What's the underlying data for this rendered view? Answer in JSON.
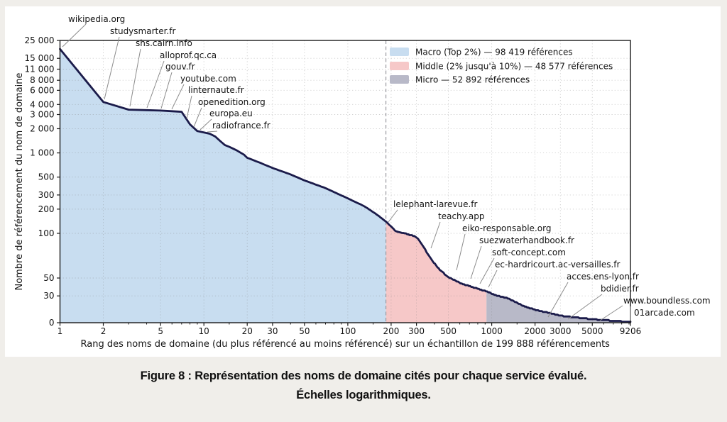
{
  "figure": {
    "caption_line1": "Figure 8 : Représentation des noms de domaine cités pour chaque service évalué.",
    "caption_line2": "Échelles logarithmiques."
  },
  "chart_data": {
    "type": "area",
    "title": "",
    "xlabel": "Rang des noms de domaine (du plus référencé au moins référencé) sur un échantillon de 199 888 référencements",
    "ylabel": "Nombre de référencement du nom de domaine",
    "x_scale": "log",
    "y_scale": "symlog (linear below 100)",
    "x_range": [
      1,
      9206
    ],
    "y_range": [
      0,
      25000
    ],
    "grid": "dotted",
    "legend_position": "top-right",
    "colors": {
      "macro_fill": "#c8ddf0",
      "middle_fill": "#f6c8c8",
      "micro_fill": "#b8b9c8",
      "line": "#1b1b4a",
      "divider": "#9a9aa0",
      "leader": "#8c8c8c",
      "frame": "#1a1a1a",
      "text": "#141414",
      "panel": "#ffffff",
      "page_background": "#f0eeea"
    },
    "legend": [
      {
        "label": "Macro (Top 2%) — 98 419 références",
        "color": "#c8ddf0"
      },
      {
        "label": "Middle (2% jusqu'à 10%) — 48 577 références",
        "color": "#f6c8c8"
      },
      {
        "label": "Micro — 52 892 références",
        "color": "#b8b9c8"
      }
    ],
    "regions": [
      {
        "name": "Macro",
        "from_rank": 1,
        "to_rank": 184,
        "color": "#c8ddf0"
      },
      {
        "name": "Middle",
        "from_rank": 184,
        "to_rank": 920,
        "color": "#f6c8c8"
      },
      {
        "name": "Micro",
        "from_rank": 920,
        "to_rank": 9206,
        "color": "#b8b9c8"
      }
    ],
    "divider_rank": 184,
    "x_ticks": [
      {
        "v": 1,
        "label": "1"
      },
      {
        "v": 2,
        "label": "2"
      },
      {
        "v": 5,
        "label": "5"
      },
      {
        "v": 10,
        "label": "10"
      },
      {
        "v": 20,
        "label": "20"
      },
      {
        "v": 30,
        "label": "30"
      },
      {
        "v": 50,
        "label": "50"
      },
      {
        "v": 100,
        "label": "100"
      },
      {
        "v": 200,
        "label": "200"
      },
      {
        "v": 300,
        "label": "300"
      },
      {
        "v": 500,
        "label": "500"
      },
      {
        "v": 1000,
        "label": "1000"
      },
      {
        "v": 2000,
        "label": "2000"
      },
      {
        "v": 3000,
        "label": "3000"
      },
      {
        "v": 5000,
        "label": "5000"
      },
      {
        "v": 9206,
        "label": "9206"
      }
    ],
    "x_minor_ticks": [
      3,
      4,
      6,
      7,
      8,
      9,
      15,
      40,
      60,
      70,
      80,
      90,
      150,
      400,
      600,
      700,
      800,
      900,
      1500,
      4000,
      6000,
      7000,
      8000,
      9000
    ],
    "y_ticks": [
      {
        "v": 25000,
        "label": "25 000"
      },
      {
        "v": 15000,
        "label": "15 000"
      },
      {
        "v": 11000,
        "label": "11 000"
      },
      {
        "v": 8000,
        "label": "8 000"
      },
      {
        "v": 6000,
        "label": "6 000"
      },
      {
        "v": 4000,
        "label": "4 000"
      },
      {
        "v": 3000,
        "label": "3 000"
      },
      {
        "v": 2000,
        "label": "2 000"
      },
      {
        "v": 1000,
        "label": "1 000"
      },
      {
        "v": 500,
        "label": "500"
      },
      {
        "v": 300,
        "label": "300"
      },
      {
        "v": 200,
        "label": "200"
      },
      {
        "v": 100,
        "label": "100"
      },
      {
        "v": 50,
        "label": "50"
      },
      {
        "v": 30,
        "label": "30"
      },
      {
        "v": 0,
        "label": "0"
      }
    ],
    "rank_count_anchors": [
      [
        1,
        19600
      ],
      [
        2,
        4300
      ],
      [
        3,
        3450
      ],
      [
        4,
        3400
      ],
      [
        5,
        3360
      ],
      [
        6,
        3300
      ],
      [
        7,
        3250
      ],
      [
        8,
        2260
      ],
      [
        9,
        1870
      ],
      [
        10,
        1800
      ],
      [
        11,
        1730
      ],
      [
        12,
        1600
      ],
      [
        13,
        1400
      ],
      [
        14,
        1250
      ],
      [
        15,
        1190
      ],
      [
        17,
        1070
      ],
      [
        19,
        950
      ],
      [
        20,
        870
      ],
      [
        25,
        745
      ],
      [
        30,
        650
      ],
      [
        40,
        540
      ],
      [
        50,
        455
      ],
      [
        70,
        365
      ],
      [
        100,
        272
      ],
      [
        130,
        218
      ],
      [
        160,
        170
      ],
      [
        184,
        140
      ],
      [
        200,
        122
      ],
      [
        215,
        106
      ],
      [
        240,
        101
      ],
      [
        300,
        96
      ],
      [
        330,
        87
      ],
      [
        420,
        62
      ],
      [
        490,
        52
      ],
      [
        610,
        44
      ],
      [
        700,
        41
      ],
      [
        800,
        38
      ],
      [
        920,
        35
      ],
      [
        1100,
        30
      ],
      [
        1320,
        27
      ],
      [
        1600,
        20
      ],
      [
        2000,
        14.5
      ],
      [
        2500,
        11
      ],
      [
        3000,
        8
      ],
      [
        4000,
        5.5
      ],
      [
        5000,
        4
      ],
      [
        6500,
        2.5
      ],
      [
        8000,
        1.5
      ],
      [
        9206,
        1
      ]
    ],
    "annotations": [
      {
        "text": "wikipedia.org",
        "label": [
          96,
          31
        ],
        "leader": [
          121,
          34,
          88,
          66
        ]
      },
      {
        "text": "studysmarter.fr",
        "label": [
          155,
          48
        ],
        "leader": [
          168,
          52,
          147,
          140
        ]
      },
      {
        "text": "shs.cairn.info",
        "label": [
          191,
          65
        ],
        "leader": [
          198,
          69,
          183,
          150
        ]
      },
      {
        "text": "alloprof.qc.ca",
        "label": [
          225,
          82
        ],
        "leader": [
          231,
          86,
          207,
          152
        ]
      },
      {
        "text": "gouv.fr",
        "label": [
          233,
          98
        ],
        "leader": [
          242,
          102,
          227,
          153
        ]
      },
      {
        "text": "youtube.com",
        "label": [
          254,
          115
        ],
        "leader": [
          259,
          119,
          242,
          154
        ]
      },
      {
        "text": "linternaute.fr",
        "label": [
          265,
          131
        ],
        "leader": [
          270,
          135,
          263,
          167
        ]
      },
      {
        "text": "openedition.org",
        "label": [
          279,
          148
        ],
        "leader": [
          284,
          152,
          273,
          179
        ]
      },
      {
        "text": "europa.eu",
        "label": [
          295,
          164
        ],
        "leader": [
          298,
          168,
          282,
          183
        ]
      },
      {
        "text": "radiofrance.fr",
        "label": [
          299,
          181
        ],
        "leader": [
          306,
          185,
          292,
          186
        ]
      },
      {
        "text": "lelephant-larevue.fr",
        "label": [
          554,
          292
        ],
        "leader": [
          560,
          296,
          547,
          313
        ]
      },
      {
        "text": "teachy.app",
        "label": [
          617,
          309
        ],
        "leader": [
          620,
          313,
          607,
          350
        ]
      },
      {
        "text": "eiko-responsable.org",
        "label": [
          651,
          326
        ],
        "leader": [
          655,
          330,
          643,
          381
        ]
      },
      {
        "text": "suezwaterhandbook.fr",
        "label": [
          675,
          343
        ],
        "leader": [
          678,
          347,
          663,
          393
        ]
      },
      {
        "text": "soft-concept.com",
        "label": [
          693,
          360
        ],
        "leader": [
          696,
          364,
          676,
          400
        ]
      },
      {
        "text": "ec-hardricourt.ac-versailles.fr",
        "label": [
          697,
          377
        ],
        "leader": [
          700,
          381,
          688,
          405
        ]
      },
      {
        "text": "acces.ens-lyon.fr",
        "label": [
          798,
          394
        ],
        "leader": [
          800,
          398,
          772,
          447
        ]
      },
      {
        "text": "bdidier.fr",
        "label": [
          846,
          411
        ],
        "leader": [
          848,
          415,
          800,
          450
        ]
      },
      {
        "text": "www.boundless.com",
        "label": [
          878,
          428
        ],
        "leader": [
          877,
          431,
          845,
          452
        ]
      },
      {
        "text": "01arcade.com",
        "label": [
          893,
          445
        ],
        "leader": [
          888,
          432,
          888,
          452
        ]
      }
    ]
  }
}
